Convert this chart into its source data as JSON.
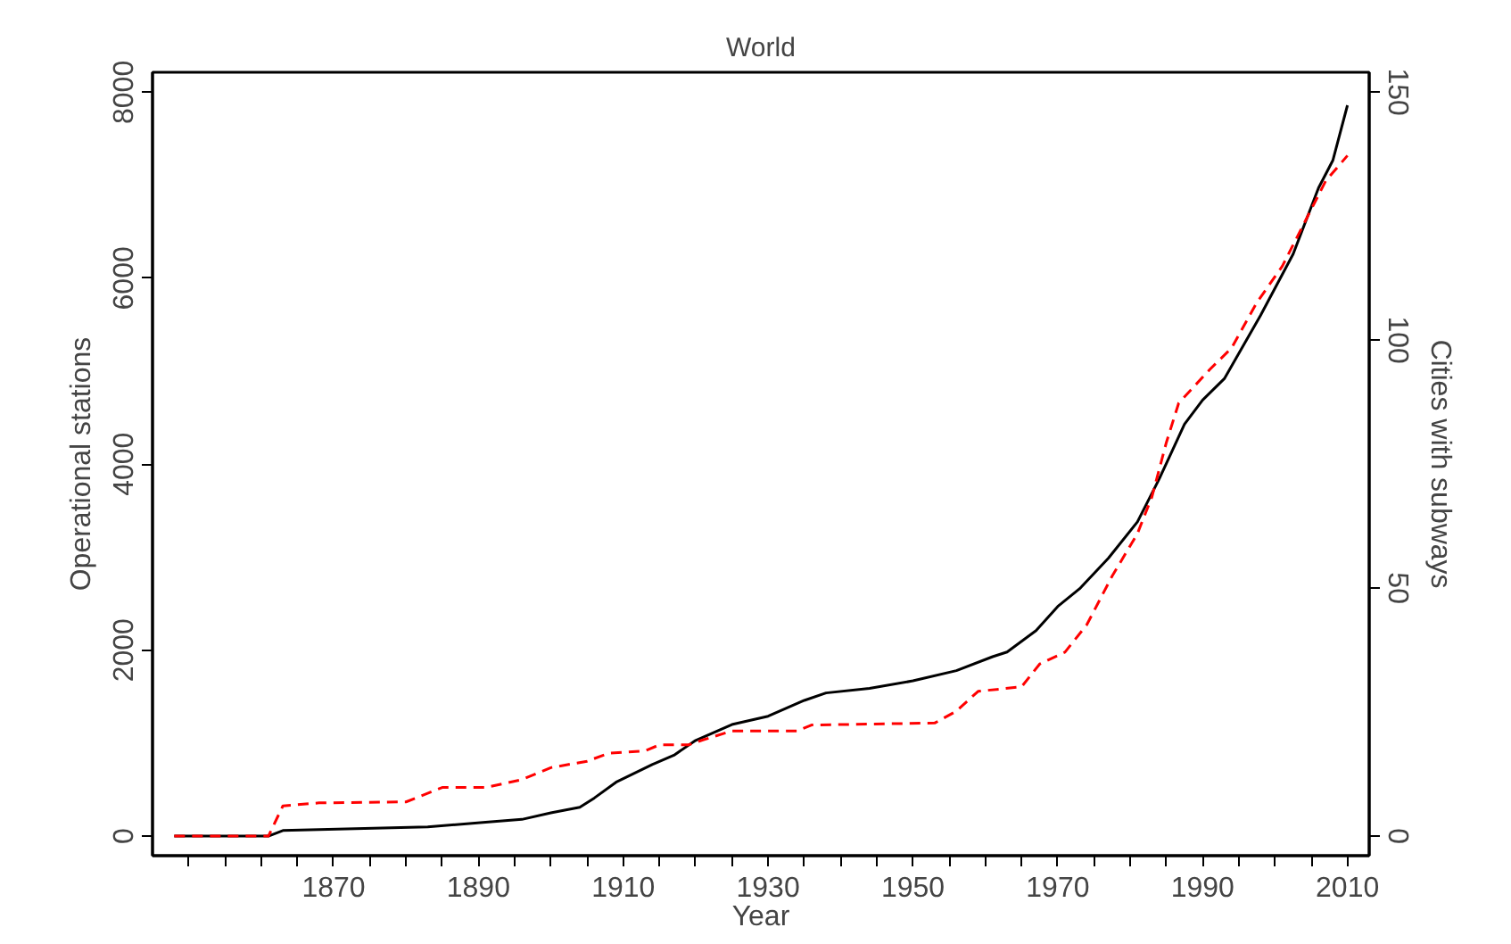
{
  "chart_data": {
    "type": "line",
    "title": "World",
    "xlabel": "Year",
    "ylabel": "Operational stations",
    "y2label": "Cities with subways",
    "xlim": [
      1845,
      2013
    ],
    "ylim": [
      -210,
      8215
    ],
    "y2lim": [
      -3.94,
      154.0
    ],
    "xticks": [
      {
        "value": 1850,
        "label": null
      },
      {
        "value": 1855,
        "label": null
      },
      {
        "value": 1860,
        "label": null
      },
      {
        "value": 1865,
        "label": null
      },
      1870,
      {
        "value": 1875,
        "label": null
      },
      {
        "value": 1880,
        "label": null
      },
      {
        "value": 1885,
        "label": null
      },
      1890,
      {
        "value": 1895,
        "label": null
      },
      {
        "value": 1900,
        "label": null
      },
      {
        "value": 1905,
        "label": null
      },
      1910,
      {
        "value": 1915,
        "label": null
      },
      {
        "value": 1920,
        "label": null
      },
      {
        "value": 1925,
        "label": null
      },
      1930,
      {
        "value": 1935,
        "label": null
      },
      {
        "value": 1940,
        "label": null
      },
      {
        "value": 1945,
        "label": null
      },
      1950,
      {
        "value": 1955,
        "label": null
      },
      {
        "value": 1960,
        "label": null
      },
      {
        "value": 1965,
        "label": null
      },
      1970,
      {
        "value": 1975,
        "label": null
      },
      {
        "value": 1980,
        "label": null
      },
      {
        "value": 1985,
        "label": null
      },
      1990,
      {
        "value": 1995,
        "label": null
      },
      {
        "value": 2000,
        "label": null
      },
      {
        "value": 2005,
        "label": null
      },
      2010
    ],
    "yticks": [
      0,
      2000,
      4000,
      6000,
      8000
    ],
    "y2ticks": [
      0,
      50,
      100,
      150
    ],
    "grid": false,
    "series": [
      {
        "color": "#000000",
        "line_style": "solid",
        "x": [
          1848,
          1861,
          1863,
          1883,
          1891,
          1896,
          1900,
          1904,
          1906,
          1909,
          1914,
          1917,
          1920,
          1925,
          1930,
          1935,
          1938,
          1944,
          1950,
          1956,
          1961,
          1963,
          1967,
          1970,
          1973,
          1977,
          1981,
          1984,
          1987.5,
          1990,
          1993,
          1998,
          2002.5,
          2006,
          2008,
          2010
        ],
        "values": [
          0,
          0,
          60,
          100,
          150,
          180,
          250,
          310,
          410,
          580,
          770,
          870,
          1030,
          1200,
          1290,
          1460,
          1540,
          1590,
          1670,
          1780,
          1930,
          1980,
          2210,
          2470,
          2660,
          2990,
          3380,
          3840,
          4430,
          4690,
          4920,
          5600,
          6260,
          6970,
          7270,
          7860
        ]
      },
      {
        "color": "#ff0000",
        "line_style": "dashed",
        "axis": "y2",
        "x": [
          1848,
          1861,
          1863,
          1868,
          1880,
          1885,
          1891,
          1896,
          1900,
          1905,
          1908,
          1913,
          1915,
          1919,
          1921,
          1925,
          1934,
          1936,
          1953,
          1956,
          1959,
          1965,
          1967.5,
          1971,
          1974,
          1977.5,
          1981,
          1983,
          1985,
          1986.7,
          1991,
          1994,
          1997.5,
          2001,
          2004,
          2007,
          2010
        ],
        "values": [
          0,
          0,
          6.1,
          6.7,
          6.9,
          9.8,
          9.8,
          11.4,
          13.8,
          15.1,
          16.7,
          17.2,
          18.4,
          18.4,
          19.4,
          21.2,
          21.2,
          22.4,
          22.8,
          25.2,
          29.2,
          30.1,
          34.7,
          37.1,
          42.6,
          52.4,
          61.0,
          68.4,
          79.4,
          87.3,
          94.1,
          98.4,
          107.6,
          114.9,
          123.5,
          132.1,
          137.2
        ]
      }
    ]
  }
}
